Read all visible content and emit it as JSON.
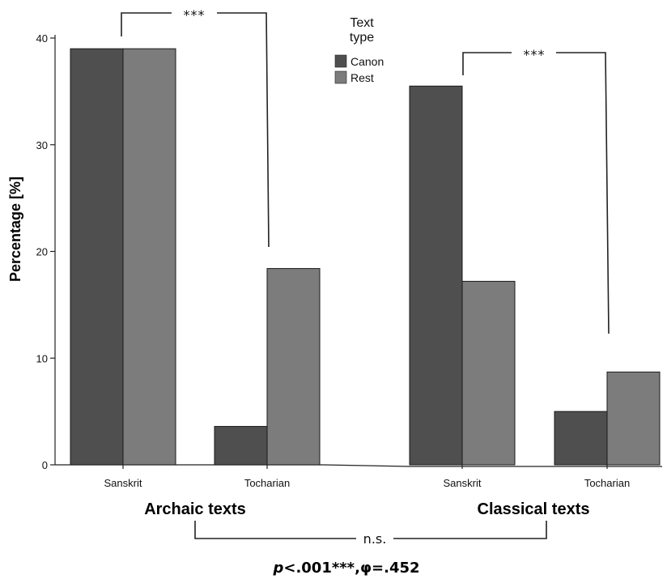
{
  "chart_data": {
    "type": "bar",
    "title": "",
    "ylabel": "Percentage [%]",
    "xlabel": "",
    "ylim": [
      0,
      40
    ],
    "yticks": [
      "0",
      "10",
      "20",
      "30",
      "40"
    ],
    "legend": {
      "title_line1": "Text",
      "title_line2": "type",
      "placement": "top-center",
      "entries": [
        {
          "name": "Canon",
          "color": "#4f4f4f"
        },
        {
          "name": "Rest",
          "color": "#7c7c7c"
        }
      ]
    },
    "groups": [
      {
        "label": "Archaic texts",
        "categories": [
          {
            "label": "Sanskrit",
            "values": {
              "Canon": 39.0,
              "Rest": 39.0
            }
          },
          {
            "label": "Tocharian",
            "values": {
              "Canon": 3.6,
              "Rest": 18.4
            }
          }
        ],
        "significance": "***"
      },
      {
        "label": "Classical texts",
        "categories": [
          {
            "label": "Sanskrit",
            "values": {
              "Canon": 35.5,
              "Rest": 17.2
            }
          },
          {
            "label": "Tocharian",
            "values": {
              "Canon": 5.0,
              "Rest": 8.7
            }
          }
        ],
        "significance": "***"
      }
    ],
    "between_groups": "n.s.",
    "statistic": {
      "p_symbol": "p",
      "p_value": "<.001***,",
      "phi": "φ=.452"
    }
  }
}
